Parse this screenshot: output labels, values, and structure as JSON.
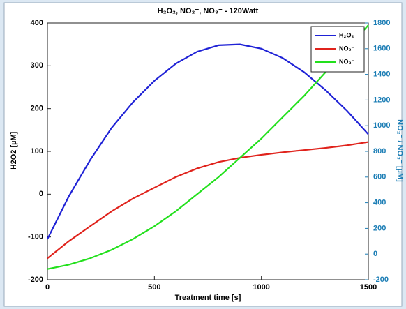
{
  "chart_data": {
    "type": "line",
    "title": "H₂O₂, NO₂⁻, NO₃⁻ - 120Watt",
    "x_label": "Treatment time [s]",
    "y_label": "H2O2 [µM]",
    "y2_label": "NO₂⁻ / NO₃⁻ [µM]",
    "x": [
      0,
      100,
      200,
      300,
      400,
      500,
      600,
      700,
      800,
      900,
      1000,
      1100,
      1200,
      1300,
      1400,
      1500
    ],
    "xlim": [
      0,
      1500
    ],
    "xticks": [
      0,
      500,
      1000,
      1500
    ],
    "ylim": [
      -200,
      400
    ],
    "yticks": [
      -200,
      -100,
      0,
      100,
      200,
      300,
      400
    ],
    "y2lim": [
      -200,
      1800
    ],
    "y2ticks": [
      -200,
      0,
      200,
      400,
      600,
      800,
      1000,
      1200,
      1400,
      1600,
      1800
    ],
    "y2_color": "#1b7db5",
    "legend": "northeast",
    "series": [
      {
        "name": "H₂O₂",
        "color": "#1f22d6",
        "values": [
          -105,
          -5,
          80,
          155,
          215,
          265,
          305,
          333,
          348,
          350,
          340,
          318,
          285,
          243,
          195,
          140
        ]
      },
      {
        "name": "NO₂⁻",
        "color": "#e0231c",
        "axis": "y2",
        "values": [
          -33,
          100,
          217,
          333,
          433,
          517,
          600,
          667,
          717,
          750,
          773,
          793,
          810,
          827,
          847,
          873
        ]
      },
      {
        "name": "NO₃⁻",
        "color": "#22e01c",
        "axis": "y2",
        "values": [
          -117,
          -83,
          -33,
          33,
          117,
          217,
          333,
          467,
          600,
          750,
          900,
          1067,
          1233,
          1417,
          1600,
          1783
        ]
      }
    ]
  }
}
